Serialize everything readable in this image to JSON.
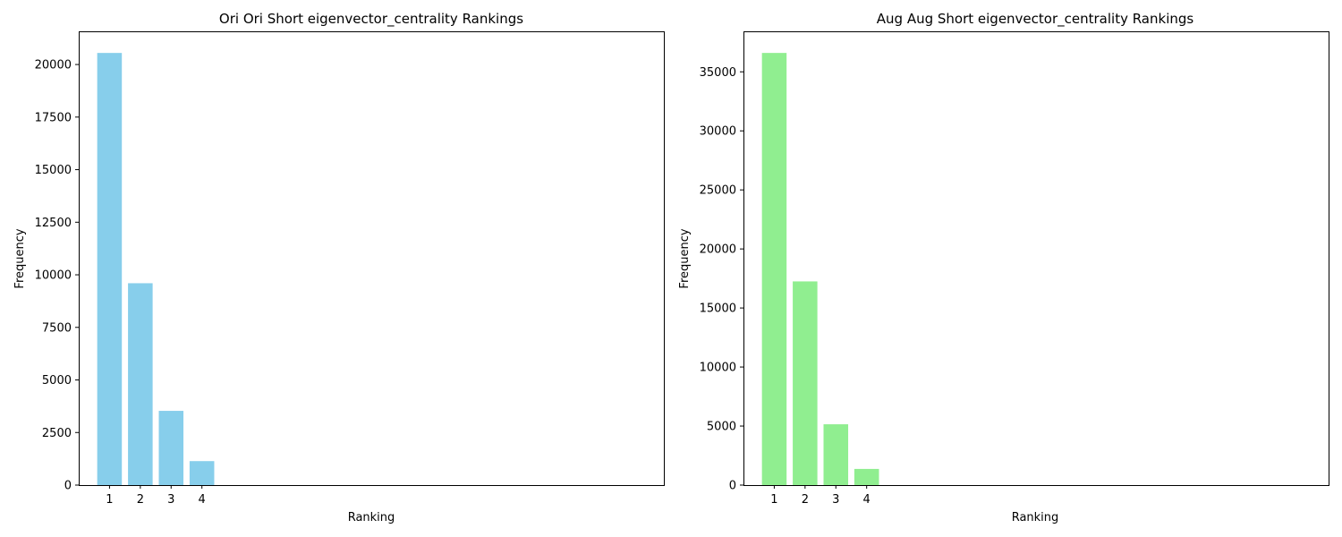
{
  "chart_data": [
    {
      "type": "bar",
      "title": "Ori Ori Short eigenvector_centrality Rankings",
      "xlabel": "Ranking",
      "ylabel": "Frequency",
      "categories": [
        1,
        2,
        3,
        4
      ],
      "category_labels": [
        "1",
        "2",
        "3",
        "4"
      ],
      "values": [
        20550,
        9600,
        3530,
        1140
      ],
      "color": "#87ceeb",
      "xlim": [
        0,
        19
      ],
      "ylim": [
        0,
        21578
      ],
      "yticks": [
        0,
        2500,
        5000,
        7500,
        10000,
        12500,
        15000,
        17500,
        20000
      ],
      "ytick_labels": [
        "0",
        "2500",
        "5000",
        "7500",
        "10000",
        "12500",
        "15000",
        "17500",
        "20000"
      ],
      "grid": false,
      "legend": "none"
    },
    {
      "type": "bar",
      "title": "Aug Aug Short eigenvector_centrality Rankings",
      "xlabel": "Ranking",
      "ylabel": "Frequency",
      "categories": [
        1,
        2,
        3,
        4
      ],
      "category_labels": [
        "1",
        "2",
        "3",
        "4"
      ],
      "values": [
        36600,
        17250,
        5150,
        1370
      ],
      "color": "#90ee90",
      "xlim": [
        0,
        19
      ],
      "ylim": [
        0,
        38430
      ],
      "yticks": [
        0,
        5000,
        10000,
        15000,
        20000,
        25000,
        30000,
        35000
      ],
      "ytick_labels": [
        "0",
        "5000",
        "10000",
        "15000",
        "20000",
        "25000",
        "30000",
        "35000"
      ],
      "grid": false,
      "legend": "none"
    }
  ]
}
